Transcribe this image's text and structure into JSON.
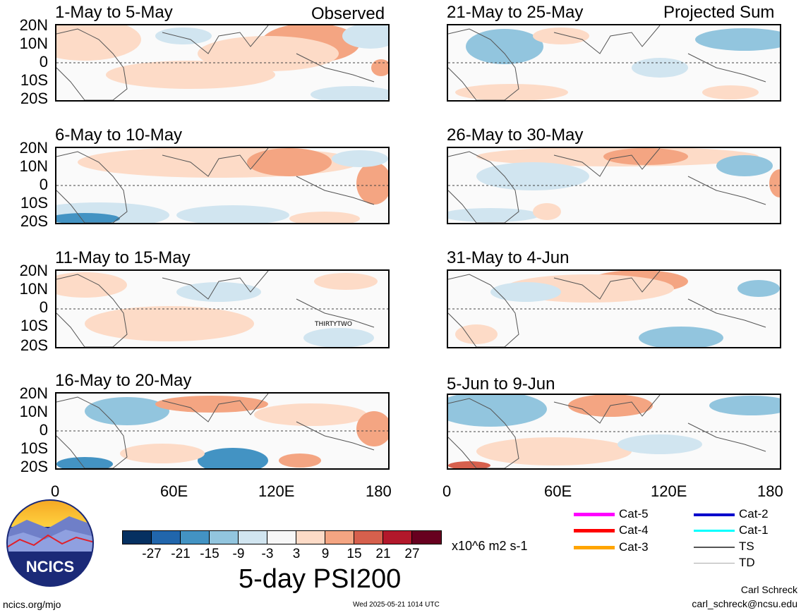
{
  "header": {
    "left_label": "Observed",
    "right_label": "Projected Sum"
  },
  "panels_left": [
    {
      "title": "1-May to 5-May"
    },
    {
      "title": "6-May to 10-May"
    },
    {
      "title": "11-May to 15-May",
      "storm_label": "THIRTYTWO"
    },
    {
      "title": "16-May to 20-May"
    }
  ],
  "panels_right": [
    {
      "title": "21-May to 25-May"
    },
    {
      "title": "26-May to 30-May"
    },
    {
      "title": "31-May to 4-Jun"
    },
    {
      "title": "5-Jun to 9-Jun"
    }
  ],
  "lat_labels": [
    "20N",
    "10N",
    "0",
    "10S",
    "20S"
  ],
  "lon_labels": [
    "0",
    "60E",
    "120E",
    "180"
  ],
  "colorbar": {
    "ticks": [
      "-27",
      "-21",
      "-15",
      "-9",
      "-3",
      "3",
      "9",
      "15",
      "21",
      "27"
    ],
    "colors": [
      "#053061",
      "#2166ac",
      "#4393c3",
      "#92c5de",
      "#d1e5f0",
      "#f7f7f7",
      "#fddbc7",
      "#f4a582",
      "#d6604d",
      "#b2182b",
      "#67001f"
    ],
    "units": "x10^6 m2 s-1",
    "title": "5-day PSI200"
  },
  "legend": [
    {
      "label": "Cat-5",
      "color": "#ff00ff"
    },
    {
      "label": "Cat-4",
      "color": "#ff0000"
    },
    {
      "label": "Cat-3",
      "color": "#ffa500"
    },
    {
      "label": "Cat-2",
      "color": "#0000cc"
    },
    {
      "label": "Cat-1",
      "color": "#00ffff"
    },
    {
      "label": "TS",
      "color": "#555555"
    },
    {
      "label": "TD",
      "color": "#aaaaaa"
    }
  ],
  "footer": {
    "logo_text": "NCICS",
    "website": "ncics.org/mjo",
    "timestamp": "Wed 2025-05-21 1014 UTC",
    "author": "Carl Schreck",
    "email": "carl_schreck@ncsu.edu"
  }
}
